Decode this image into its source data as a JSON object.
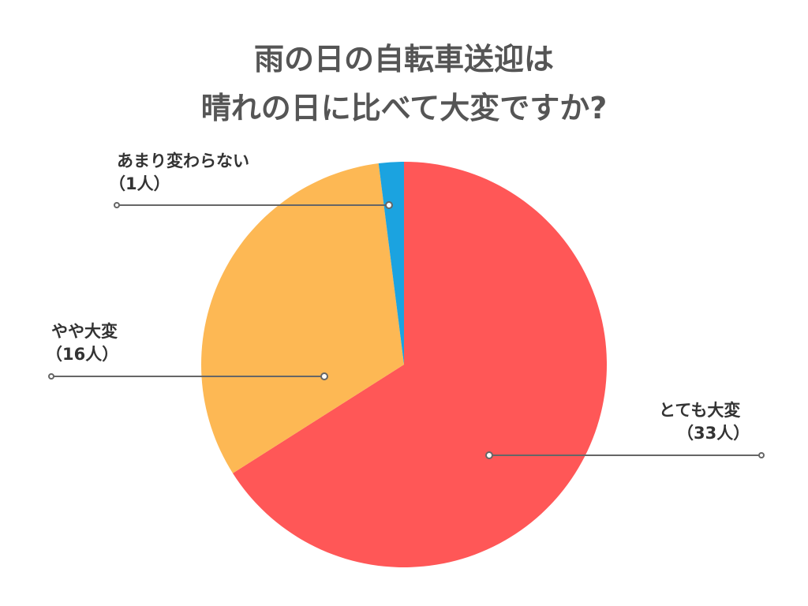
{
  "chart_data": {
    "type": "pie",
    "title_lines": [
      "雨の日の自転車送迎は",
      "晴れの日に比べて大変ですか?"
    ],
    "slices": [
      {
        "label": "とても大変",
        "count_label": "（33人）",
        "value": 33,
        "color": "#FF5757"
      },
      {
        "label": "やや大変",
        "count_label": "（16人）",
        "value": 16,
        "color": "#FDB854"
      },
      {
        "label": "あまり変わらない",
        "count_label": "（1人）",
        "value": 1,
        "color": "#1BA3E0"
      }
    ]
  }
}
